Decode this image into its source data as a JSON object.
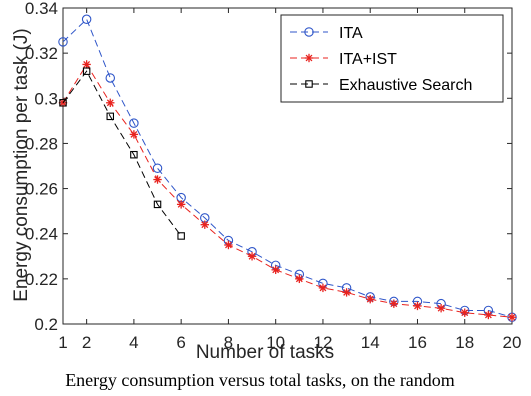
{
  "chart_data": {
    "type": "line",
    "title": "",
    "xlabel": "Number of tasks",
    "ylabel": "Energy consumption per task (J)",
    "xlim": [
      1,
      20
    ],
    "ylim": [
      0.2,
      0.34
    ],
    "xticks": [
      1,
      2,
      4,
      6,
      8,
      10,
      12,
      14,
      16,
      18,
      20
    ],
    "xtick_labels": [
      "1",
      "2",
      "4",
      "6",
      "8",
      "10",
      "12",
      "14",
      "16",
      "18",
      "20"
    ],
    "yticks": [
      0.2,
      0.22,
      0.24,
      0.26,
      0.28,
      0.3,
      0.32,
      0.34
    ],
    "ytick_labels": [
      "0.2",
      "0.22",
      "0.24",
      "0.26",
      "0.28",
      "0.3",
      "0.32",
      "0.34"
    ],
    "grid": false,
    "legend_position": "top-right",
    "series": [
      {
        "name": "ITA",
        "color": "#2f56c9",
        "marker": "circle",
        "line_style": "dashed",
        "x": [
          1,
          2,
          3,
          4,
          5,
          6,
          7,
          8,
          9,
          10,
          11,
          12,
          13,
          14,
          15,
          16,
          17,
          18,
          19,
          20
        ],
        "values": [
          0.325,
          0.335,
          0.309,
          0.289,
          0.269,
          0.256,
          0.247,
          0.237,
          0.232,
          0.226,
          0.222,
          0.218,
          0.216,
          0.212,
          0.21,
          0.21,
          0.209,
          0.206,
          0.206,
          0.203
        ]
      },
      {
        "name": "ITA+IST",
        "color": "#e8231f",
        "marker": "asterisk",
        "line_style": "dashed",
        "x": [
          1,
          2,
          3,
          4,
          5,
          6,
          7,
          8,
          9,
          10,
          11,
          12,
          13,
          14,
          15,
          16,
          17,
          18,
          19,
          20
        ],
        "values": [
          0.298,
          0.315,
          0.298,
          0.284,
          0.264,
          0.253,
          0.244,
          0.235,
          0.23,
          0.224,
          0.22,
          0.216,
          0.214,
          0.211,
          0.209,
          0.208,
          0.207,
          0.205,
          0.204,
          0.203
        ]
      },
      {
        "name": "Exhaustive Search",
        "color": "#000000",
        "marker": "square",
        "line_style": "dashed",
        "x": [
          1,
          2,
          3,
          4,
          5,
          6
        ],
        "values": [
          0.298,
          0.312,
          0.292,
          0.275,
          0.253,
          0.239
        ]
      }
    ]
  },
  "caption": "Energy consumption versus total tasks, on the random"
}
